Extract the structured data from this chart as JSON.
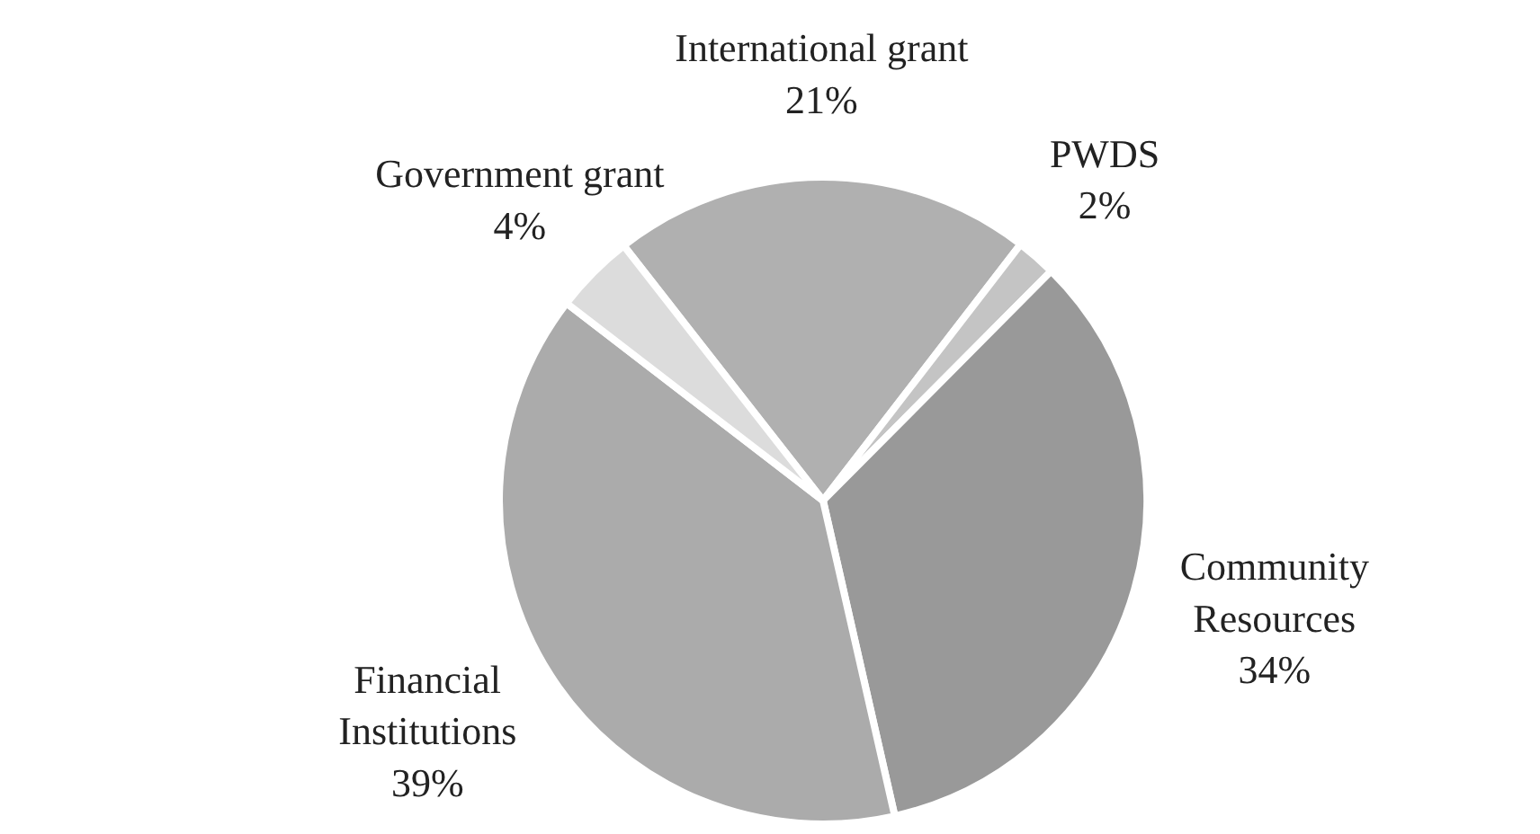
{
  "chart_data": {
    "type": "pie",
    "categories": [
      "International grant",
      "PWDS",
      "Community Resources",
      "Financial Institutions",
      "Government grant"
    ],
    "values": [
      21,
      2,
      34,
      39,
      4
    ],
    "value_labels": [
      "21%",
      "2%",
      "34%",
      "39%",
      "4%"
    ],
    "colors": [
      "#b0b0b0",
      "#c4c4c4",
      "#999999",
      "#ababab",
      "#dcdcdc"
    ]
  }
}
